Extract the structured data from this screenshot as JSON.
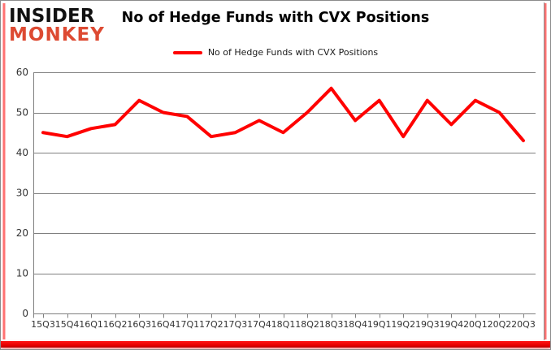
{
  "logo": {
    "line1": "INSIDER",
    "line2": "MONKEY"
  },
  "header": {
    "title": "No of Hedge Funds with CVX Positions"
  },
  "legend": {
    "label": "No of Hedge Funds with CVX Positions"
  },
  "colors": {
    "series": "#FF0000",
    "grid": "#808080",
    "axis_text": "#333333",
    "logo_red": "#DD4A32",
    "frame_red": "#E60000"
  },
  "chart_data": {
    "type": "line",
    "title": "No of Hedge Funds with CVX Positions",
    "categories": [
      "15Q3",
      "15Q4",
      "16Q1",
      "16Q2",
      "16Q3",
      "16Q4",
      "17Q1",
      "17Q2",
      "17Q3",
      "17Q4",
      "18Q1",
      "18Q2",
      "18Q3",
      "18Q4",
      "19Q1",
      "19Q2",
      "19Q3",
      "19Q4",
      "20Q1",
      "20Q2",
      "20Q3"
    ],
    "series": [
      {
        "name": "No of Hedge Funds with CVX Positions",
        "color": "#FF0000",
        "values": [
          45,
          44,
          46,
          47,
          53,
          50,
          49,
          44,
          45,
          48,
          45,
          50,
          56,
          48,
          53,
          44,
          53,
          47,
          53,
          50,
          43
        ]
      }
    ],
    "xlabel": "",
    "ylabel": "",
    "ylim": [
      0,
      60
    ],
    "yticks": [
      0,
      10,
      20,
      30,
      40,
      50,
      60
    ],
    "grid": true,
    "legend_position": "top"
  }
}
